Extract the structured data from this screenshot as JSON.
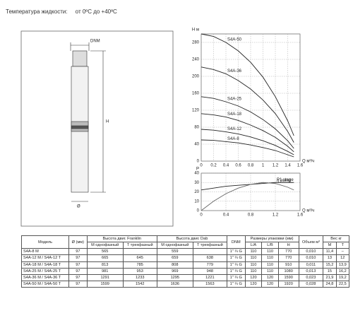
{
  "header": {
    "text": "Температура жидкости:     от 0ºС до +40ºС"
  },
  "drawing": {
    "labels": [
      "DNM",
      "H",
      "Ø"
    ]
  },
  "chart_data": [
    {
      "type": "line",
      "xlabel": "Q м³/ч",
      "ylabel": "H м",
      "xlim": [
        0,
        1.6
      ],
      "ylim": [
        0,
        300
      ],
      "xticks": [
        0,
        0.2,
        0.4,
        0.6,
        0.8,
        1,
        1.2,
        1.4,
        1.6
      ],
      "yticks": [
        0,
        40,
        80,
        120,
        160,
        200,
        240,
        280
      ],
      "grid": true,
      "x": [
        0,
        0.2,
        0.4,
        0.6,
        0.8,
        1,
        1.2,
        1.4,
        1.5
      ],
      "series": [
        {
          "name": "S4A-50",
          "color": "#222222",
          "values": [
            300,
            294,
            280,
            260,
            233,
            198,
            152,
            95,
            60
          ]
        },
        {
          "name": "S4A-36",
          "color": "#222222",
          "values": [
            222,
            216,
            206,
            190,
            170,
            144,
            112,
            70,
            44
          ]
        },
        {
          "name": "S4A-25",
          "color": "#222222",
          "values": [
            152,
            148,
            140,
            130,
            116,
            98,
            76,
            48,
            30
          ]
        },
        {
          "name": "S4A-18",
          "color": "#222222",
          "values": [
            112,
            109,
            104,
            96,
            85,
            72,
            56,
            35,
            22
          ]
        },
        {
          "name": "S4A-12",
          "color": "#222222",
          "values": [
            75,
            73,
            69,
            64,
            57,
            48,
            37,
            23,
            15
          ]
        },
        {
          "name": "S4A-8",
          "color": "#222222",
          "values": [
            50,
            49,
            46,
            43,
            38,
            32,
            25,
            15,
            10
          ]
        }
      ]
    },
    {
      "type": "line",
      "xlabel": "Q м³/ч",
      "ylabel": "P",
      "xlim": [
        0,
        1.6
      ],
      "ylim": [
        0,
        40
      ],
      "xticks": [
        0,
        0.4,
        0.8,
        1.2,
        1.6
      ],
      "yticks": [
        0,
        10,
        20,
        30,
        40
      ],
      "grid": true,
      "x": [
        0,
        0.2,
        0.4,
        0.6,
        0.8,
        1,
        1.2,
        1.4,
        1.5
      ],
      "series": [
        {
          "name": "P1 stage",
          "color": "#222222",
          "values": [
            22,
            24,
            26,
            27,
            28,
            29,
            30,
            30,
            30
          ]
        },
        {
          "name": "η pump",
          "color": "#666666",
          "values": [
            0,
            10,
            18,
            24,
            28,
            30,
            29,
            25,
            22
          ]
        }
      ]
    }
  ],
  "table": {
    "groups": [
      "Модель",
      "Ø (мм)",
      "Высота двиг. Franklin",
      "Высота двиг. Dab",
      "DNM",
      "Размеры упаковки (мм)",
      "Объем м³",
      "Вес кг"
    ],
    "subheads": [
      "М однофазный",
      "Т трехфазный",
      "М однофазный",
      "Т трехфазный",
      "L/A",
      "L/B",
      "H",
      "М",
      "Т"
    ],
    "rows": [
      [
        "S4A-8 M",
        "97",
        "565",
        null,
        "559",
        null,
        "1\" ¼ G",
        "110",
        "110",
        "770",
        "0,010",
        "11,4",
        "–"
      ],
      [
        "S4A-12 M / S4A-12 T",
        "97",
        "665",
        "645",
        "659",
        "638",
        "1\" ¼ G",
        "110",
        "110",
        "770",
        "0,010",
        "13",
        "12"
      ],
      [
        "S4A-18 M / S4A-18 T",
        "97",
        "813",
        "785",
        "808",
        "779",
        "1\" ¼ G",
        "110",
        "110",
        "910",
        "0,011",
        "15,2",
        "13,9"
      ],
      [
        "S4A-25 M / S4A-25 T",
        "97",
        "981",
        "953",
        "969",
        "948",
        "1\" ¼ G",
        "110",
        "110",
        "1080",
        "0,013",
        "15",
        "16,2"
      ],
      [
        "S4A-36 M / S4A-36 T",
        "97",
        "1291",
        "1233",
        "1295",
        "1221",
        "1\" ¼ G",
        "120",
        "120",
        "1590",
        "0,023",
        "21,9",
        "19,2"
      ],
      [
        "S4A-50 M / S4A-50 T",
        "97",
        "1599",
        "1542",
        "1636",
        "1563",
        "1\" ¼ G",
        "120",
        "120",
        "1920",
        "0,028",
        "24,8",
        "22,5"
      ]
    ]
  }
}
